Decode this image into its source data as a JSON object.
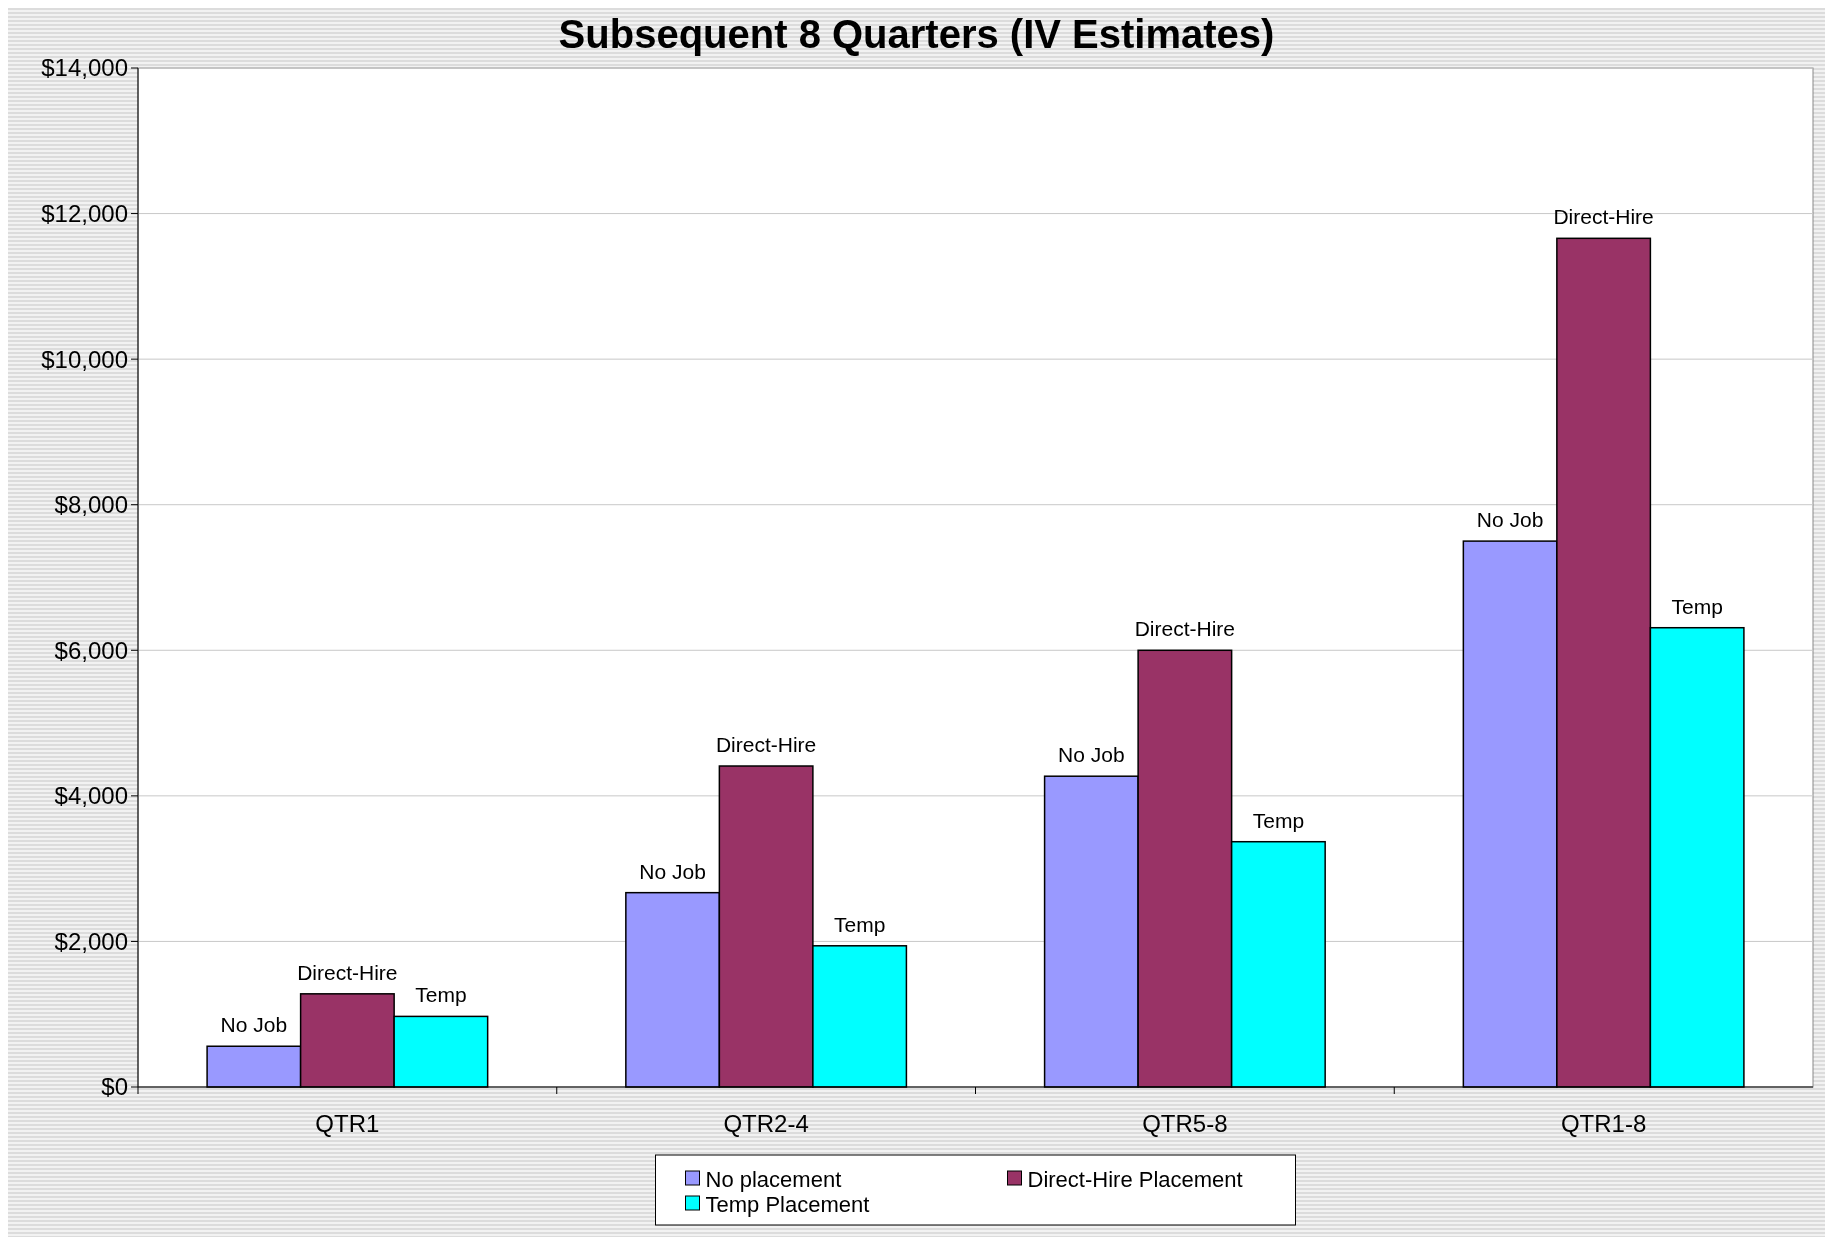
{
  "chart_data": {
    "type": "bar",
    "title": "Subsequent 8 Quarters (IV Estimates)",
    "categories": [
      "QTR1",
      "QTR2-4",
      "QTR5-8",
      "QTR1-8"
    ],
    "series": [
      {
        "name": "No placement",
        "color": "#9999ff",
        "values": [
          560,
          2670,
          4270,
          7500
        ],
        "value_labels": [
          "No Job",
          "No Job",
          "No Job",
          "No Job"
        ]
      },
      {
        "name": "Direct-Hire Placement",
        "color": "#993366",
        "values": [
          1280,
          4410,
          6000,
          11660
        ],
        "value_labels": [
          "Direct-Hire",
          "Direct-Hire",
          "Direct-Hire",
          "Direct-Hire"
        ]
      },
      {
        "name": "Temp Placement",
        "color": "#00ffff",
        "values": [
          970,
          1940,
          3370,
          6310
        ],
        "value_labels": [
          "Temp",
          "Temp",
          "Temp",
          "Temp"
        ]
      }
    ],
    "ylim": [
      0,
      14000
    ],
    "yticks": [
      {
        "value": 0,
        "label": "$0"
      },
      {
        "value": 2000,
        "label": "$2,000"
      },
      {
        "value": 4000,
        "label": "$4,000"
      },
      {
        "value": 6000,
        "label": "$6,000"
      },
      {
        "value": 8000,
        "label": "$8,000"
      },
      {
        "value": 10000,
        "label": "$10,000"
      },
      {
        "value": 12000,
        "label": "$12,000"
      },
      {
        "value": 14000,
        "label": "$14,000"
      }
    ],
    "grid": "y",
    "legend": "bottom"
  }
}
